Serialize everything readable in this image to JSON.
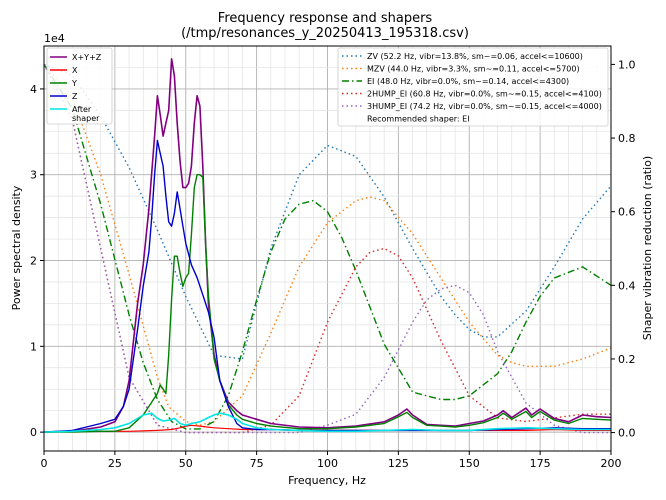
{
  "chart_data": {
    "type": "line",
    "title_line1": "Frequency response and shapers",
    "title_line2": "(/tmp/resonances_y_20250413_195318.csv)",
    "xlabel": "Frequency, Hz",
    "ylabel": "Power spectral density",
    "ylabel_right": "Shaper vibration reduction (ratio)",
    "y_offset_label": "1e4",
    "xlim": [
      0,
      200
    ],
    "ylim": [
      -0.22,
      4.5
    ],
    "ylim_right": [
      -0.05,
      1.05
    ],
    "x_ticks": [
      0,
      25,
      50,
      75,
      100,
      125,
      150,
      175,
      200
    ],
    "y_ticks": [
      0,
      1,
      2,
      3,
      4
    ],
    "y_ticks_right": [
      0.0,
      0.2,
      0.4,
      0.6,
      0.8,
      1.0
    ],
    "grid": true,
    "legend_left_placement": "top-left",
    "legend_right_placement": "top-right",
    "psd_series": [
      {
        "name": "X+Y+Z",
        "color": "#800080",
        "width": 1.6,
        "x": [
          0,
          10,
          20,
          25,
          28,
          30,
          33,
          35,
          37,
          39,
          40,
          41,
          42,
          43,
          44,
          45,
          46,
          47,
          48,
          49,
          50,
          51,
          52,
          53,
          54,
          55,
          56,
          57,
          58,
          60,
          62,
          65,
          68,
          70,
          75,
          80,
          90,
          100,
          110,
          120,
          125,
          128,
          130,
          135,
          140,
          145,
          150,
          155,
          160,
          162,
          165,
          170,
          172,
          175,
          180,
          185,
          190,
          195,
          200
        ],
        "y": [
          0.0,
          0.01,
          0.06,
          0.12,
          0.3,
          0.6,
          1.5,
          1.95,
          2.6,
          3.45,
          3.92,
          3.7,
          3.45,
          3.6,
          3.75,
          4.35,
          4.15,
          3.6,
          3.15,
          2.85,
          2.85,
          2.9,
          3.1,
          3.6,
          3.92,
          3.8,
          3.1,
          2.2,
          1.5,
          0.9,
          0.6,
          0.35,
          0.25,
          0.2,
          0.15,
          0.1,
          0.06,
          0.05,
          0.07,
          0.12,
          0.2,
          0.27,
          0.2,
          0.09,
          0.08,
          0.07,
          0.1,
          0.13,
          0.2,
          0.25,
          0.17,
          0.28,
          0.2,
          0.27,
          0.16,
          0.12,
          0.2,
          0.18,
          0.17
        ]
      },
      {
        "name": "X",
        "color": "#ff0000",
        "width": 1.2,
        "x": [
          0,
          10,
          20,
          30,
          40,
          45,
          48,
          50,
          52,
          55,
          60,
          65,
          70,
          80,
          90,
          100,
          110,
          120,
          130,
          140,
          150,
          160,
          170,
          180,
          190,
          200
        ],
        "y": [
          0.0,
          0.01,
          0.01,
          0.01,
          0.02,
          0.03,
          0.05,
          0.07,
          0.08,
          0.07,
          0.05,
          0.04,
          0.03,
          0.03,
          0.02,
          0.02,
          0.02,
          0.02,
          0.02,
          0.02,
          0.02,
          0.02,
          0.02,
          0.03,
          0.02,
          0.02
        ]
      },
      {
        "name": "Y",
        "color": "#008000",
        "width": 1.4,
        "x": [
          0,
          10,
          20,
          25,
          30,
          35,
          38,
          40,
          41,
          42,
          43,
          44,
          45,
          46,
          47,
          48,
          49,
          50,
          51,
          52,
          53,
          54,
          55,
          56,
          57,
          58,
          60,
          62,
          65,
          68,
          70,
          75,
          80,
          90,
          100,
          110,
          120,
          125,
          128,
          130,
          135,
          140,
          145,
          150,
          155,
          160,
          162,
          165,
          170,
          172,
          175,
          180,
          185,
          190,
          195,
          200
        ],
        "y": [
          0.0,
          0.0,
          0.01,
          0.01,
          0.05,
          0.2,
          0.35,
          0.45,
          0.55,
          0.5,
          0.45,
          0.9,
          1.55,
          2.05,
          2.05,
          1.85,
          1.7,
          1.8,
          1.85,
          2.3,
          2.85,
          3.0,
          3.0,
          2.97,
          2.2,
          1.6,
          0.85,
          0.6,
          0.32,
          0.2,
          0.15,
          0.1,
          0.07,
          0.04,
          0.04,
          0.06,
          0.1,
          0.18,
          0.23,
          0.17,
          0.08,
          0.07,
          0.06,
          0.08,
          0.11,
          0.17,
          0.22,
          0.15,
          0.24,
          0.17,
          0.24,
          0.14,
          0.1,
          0.16,
          0.15,
          0.14
        ]
      },
      {
        "name": "Z",
        "color": "#0000cc",
        "width": 1.4,
        "x": [
          0,
          10,
          15,
          20,
          25,
          28,
          30,
          33,
          35,
          37,
          38,
          39,
          40,
          41,
          42,
          43,
          44,
          45,
          46,
          47,
          48,
          49,
          50,
          52,
          54,
          56,
          58,
          60,
          62,
          65,
          68,
          70,
          75,
          80,
          90,
          100,
          110,
          120,
          130,
          140,
          150,
          160,
          170,
          180,
          190,
          200
        ],
        "y": [
          0.0,
          0.02,
          0.06,
          0.1,
          0.15,
          0.3,
          0.5,
          1.2,
          1.7,
          2.1,
          2.5,
          3.0,
          3.4,
          3.25,
          3.1,
          2.75,
          2.45,
          2.4,
          2.55,
          2.8,
          2.6,
          2.4,
          2.2,
          1.95,
          1.8,
          1.6,
          1.4,
          1.1,
          0.6,
          0.3,
          0.1,
          0.05,
          0.03,
          0.03,
          0.02,
          0.02,
          0.02,
          0.02,
          0.02,
          0.02,
          0.02,
          0.03,
          0.04,
          0.05,
          0.04,
          0.04
        ]
      },
      {
        "name": "After\nshaper",
        "color": "#00e5e5",
        "width": 1.6,
        "x": [
          0,
          10,
          20,
          25,
          30,
          35,
          38,
          40,
          42,
          44,
          46,
          48,
          50,
          52,
          55,
          58,
          60,
          62,
          65,
          68,
          70,
          75,
          80,
          90,
          100,
          110,
          120,
          130,
          140,
          150,
          160,
          170,
          180,
          190,
          200
        ],
        "y": [
          0.0,
          0.01,
          0.03,
          0.05,
          0.1,
          0.2,
          0.22,
          0.16,
          0.13,
          0.14,
          0.16,
          0.1,
          0.08,
          0.1,
          0.12,
          0.17,
          0.2,
          0.22,
          0.2,
          0.15,
          0.1,
          0.05,
          0.03,
          0.02,
          0.01,
          0.01,
          0.02,
          0.03,
          0.02,
          0.02,
          0.04,
          0.05,
          0.04,
          0.03,
          0.03
        ]
      }
    ],
    "shaper_series": [
      {
        "name": "ZV (52.2 Hz, vibr=13.8%, sm~=0.06, accel<=10600)",
        "color": "#1f77b4",
        "dash": "1.5,3",
        "x": [
          0,
          10,
          20,
          30,
          40,
          50,
          60,
          70,
          80,
          90,
          100,
          110,
          120,
          130,
          140,
          145,
          150,
          155,
          160,
          170,
          180,
          190,
          200
        ],
        "y": [
          1.0,
          0.97,
          0.86,
          0.72,
          0.55,
          0.37,
          0.21,
          0.2,
          0.5,
          0.7,
          0.78,
          0.75,
          0.64,
          0.5,
          0.37,
          0.32,
          0.28,
          0.26,
          0.26,
          0.33,
          0.45,
          0.58,
          0.67
        ]
      },
      {
        "name": "MZV (44.0 Hz, vibr=3.3%, sm~=0.11, accel<=5700)",
        "color": "#ff7f0e",
        "dash": "1.5,3",
        "x": [
          0,
          10,
          20,
          30,
          35,
          40,
          44,
          50,
          55,
          60,
          70,
          80,
          90,
          100,
          110,
          115,
          120,
          130,
          140,
          150,
          160,
          165,
          170,
          180,
          190,
          200
        ],
        "y": [
          1.0,
          0.91,
          0.7,
          0.43,
          0.29,
          0.15,
          0.07,
          0.03,
          0.02,
          0.03,
          0.1,
          0.27,
          0.45,
          0.57,
          0.63,
          0.64,
          0.63,
          0.54,
          0.42,
          0.3,
          0.21,
          0.19,
          0.18,
          0.18,
          0.2,
          0.23
        ]
      },
      {
        "name": "EI (48.0 Hz, vibr=0.0%, sm~=0.14, accel<=4300)",
        "color": "#008000",
        "dash": "7,3,1.5,3",
        "x": [
          0,
          10,
          20,
          30,
          35,
          40,
          45,
          50,
          55,
          60,
          65,
          70,
          75,
          80,
          85,
          90,
          95,
          100,
          105,
          110,
          120,
          130,
          140,
          145,
          150,
          160,
          165,
          170,
          175,
          180,
          190,
          200
        ],
        "y": [
          1.0,
          0.88,
          0.62,
          0.32,
          0.19,
          0.09,
          0.03,
          0.01,
          0.01,
          0.03,
          0.1,
          0.22,
          0.36,
          0.49,
          0.58,
          0.62,
          0.63,
          0.6,
          0.53,
          0.44,
          0.24,
          0.11,
          0.09,
          0.09,
          0.1,
          0.16,
          0.22,
          0.3,
          0.37,
          0.42,
          0.45,
          0.4
        ]
      },
      {
        "name": "2HUMP_EI (60.8 Hz, vibr=0.0%, sm~=0.15, accel<=4100)",
        "color": "#d62728",
        "dash": "1.5,3",
        "x": [
          0,
          10,
          20,
          30,
          40,
          50,
          60,
          70,
          80,
          90,
          100,
          110,
          115,
          120,
          125,
          130,
          140,
          150,
          160,
          170,
          180,
          190,
          200
        ],
        "y": [
          1.0,
          0.85,
          0.5,
          0.15,
          0.02,
          0.0,
          0.0,
          0.0,
          0.02,
          0.1,
          0.3,
          0.45,
          0.49,
          0.5,
          0.48,
          0.42,
          0.25,
          0.1,
          0.04,
          0.03,
          0.04,
          0.05,
          0.05
        ]
      },
      {
        "name": "3HUMP_EI (74.2 Hz, vibr=0.0%, sm~=0.15, accel<=4000)",
        "color": "#9467bd",
        "dash": "1.5,3",
        "x": [
          0,
          10,
          20,
          30,
          40,
          50,
          60,
          70,
          80,
          90,
          100,
          110,
          120,
          130,
          135,
          140,
          145,
          150,
          155,
          160,
          170,
          180,
          190,
          200
        ],
        "y": [
          1.0,
          0.85,
          0.5,
          0.15,
          0.02,
          0.0,
          0.0,
          0.0,
          0.0,
          0.0,
          0.02,
          0.05,
          0.15,
          0.3,
          0.36,
          0.39,
          0.4,
          0.38,
          0.32,
          0.22,
          0.08,
          0.02,
          0.0,
          0.0
        ]
      }
    ],
    "recommended_label": "Recommended shaper: EI"
  }
}
